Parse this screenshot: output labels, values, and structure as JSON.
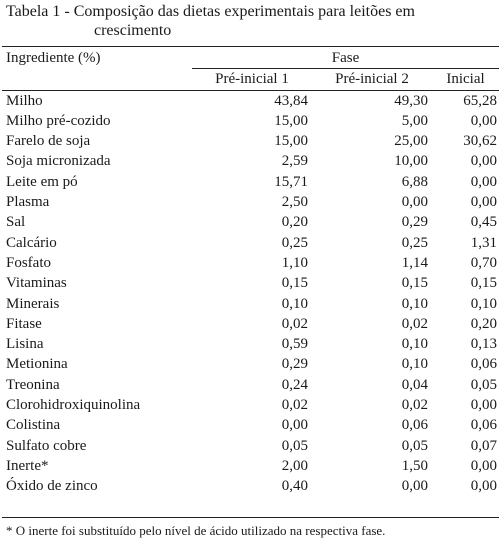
{
  "caption": {
    "label": "Tabela 1 -",
    "line1": "Composição das dietas experimentais para leitões em",
    "line2": "crescimento"
  },
  "headers": {
    "ingredient": "Ingrediente  (%)",
    "group": "Fase",
    "phases": [
      "Pré-inicial  1",
      "Pré-inicial  2",
      "Inicial"
    ]
  },
  "rows": [
    {
      "name": "Milho",
      "v": [
        "43,84",
        "49,30",
        "65,28"
      ]
    },
    {
      "name": "Milho  pré-cozido",
      "v": [
        "15,00",
        "5,00",
        "0,00"
      ]
    },
    {
      "name": "Farelo de soja",
      "v": [
        "15,00",
        "25,00",
        "30,62"
      ]
    },
    {
      "name": "Soja  micronizada",
      "v": [
        "2,59",
        "10,00",
        "0,00"
      ]
    },
    {
      "name": "Leite  em  pó",
      "v": [
        "15,71",
        "6,88",
        "0,00"
      ]
    },
    {
      "name": "Plasma",
      "v": [
        "2,50",
        "0,00",
        "0,00"
      ]
    },
    {
      "name": "Sal",
      "v": [
        "0,20",
        "0,29",
        "0,45"
      ]
    },
    {
      "name": "Calcário",
      "v": [
        "0,25",
        "0,25",
        "1,31"
      ]
    },
    {
      "name": "Fosfato",
      "v": [
        "1,10",
        "1,14",
        "0,70"
      ]
    },
    {
      "name": "Vitaminas",
      "v": [
        "0,15",
        "0,15",
        "0,15"
      ]
    },
    {
      "name": "Minerais",
      "v": [
        "0,10",
        "0,10",
        "0,10"
      ]
    },
    {
      "name": "Fitase",
      "v": [
        "0,02",
        "0,02",
        "0,20"
      ]
    },
    {
      "name": "Lisina",
      "v": [
        "0,59",
        "0,10",
        "0,13"
      ]
    },
    {
      "name": "Metionina",
      "v": [
        "0,29",
        "0,10",
        "0,06"
      ]
    },
    {
      "name": "Treonina",
      "v": [
        "0,24",
        "0,04",
        "0,05"
      ]
    },
    {
      "name": "Clorohidroxiquinolina",
      "v": [
        "0,02",
        "0,02",
        "0,00"
      ]
    },
    {
      "name": "Colistina",
      "v": [
        "0,00",
        "0,06",
        "0,06"
      ]
    },
    {
      "name": "Sulfato  cobre",
      "v": [
        "0,05",
        "0,05",
        "0,07"
      ]
    },
    {
      "name": "Inerte*",
      "v": [
        "2,00",
        "1,50",
        "0,00"
      ]
    },
    {
      "name": "Óxido  de  zinco",
      "v": [
        "0,40",
        "0,00",
        "0,00"
      ]
    }
  ],
  "footnote": "* O inerte foi substituído pelo nível de ácido utilizado na respectiva fase."
}
